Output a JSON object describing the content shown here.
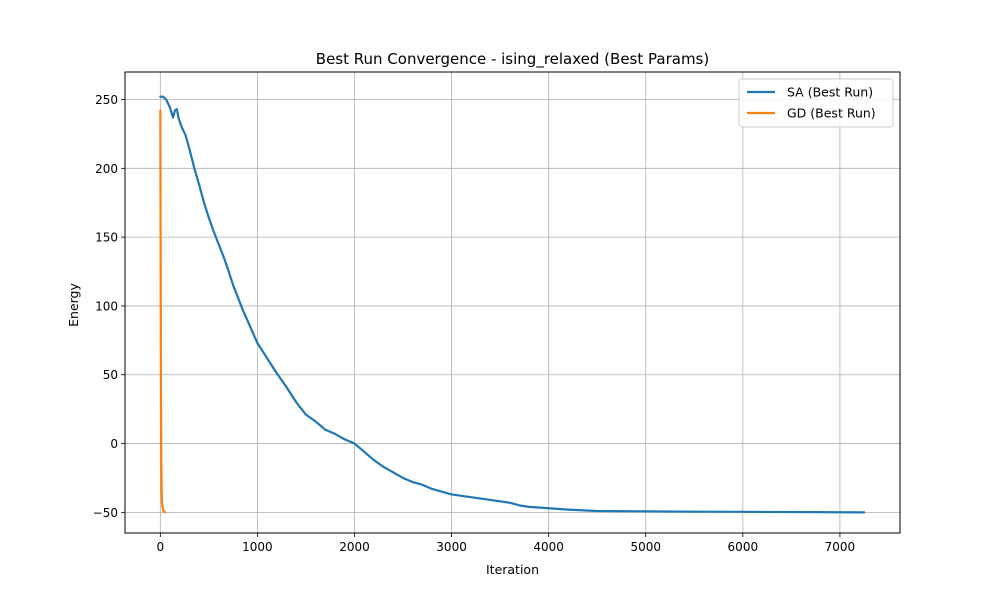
{
  "chart_data": {
    "type": "line",
    "title": "Best Run Convergence - ising_relaxed (Best Params)",
    "xlabel": "Iteration",
    "ylabel": "Energy",
    "xlim": [
      -364,
      7619
    ],
    "ylim": [
      -65,
      270
    ],
    "xticks": [
      0,
      1000,
      2000,
      3000,
      4000,
      5000,
      6000,
      7000
    ],
    "yticks": [
      -50,
      0,
      50,
      100,
      150,
      200,
      250
    ],
    "grid": true,
    "legend_position": "upper right",
    "series": [
      {
        "name": "SA (Best Run)",
        "color": "#1f77b4",
        "x": [
          0,
          30,
          60,
          100,
          130,
          150,
          170,
          190,
          220,
          260,
          300,
          350,
          400,
          450,
          500,
          550,
          600,
          650,
          700,
          750,
          800,
          850,
          900,
          950,
          1000,
          1100,
          1200,
          1300,
          1400,
          1500,
          1600,
          1700,
          1800,
          1900,
          2000,
          2100,
          2200,
          2300,
          2400,
          2500,
          2600,
          2700,
          2800,
          2900,
          3000,
          3200,
          3400,
          3600,
          3700,
          3800,
          4000,
          4200,
          4500,
          5000,
          5500,
          6000,
          6500,
          7000,
          7250
        ],
        "y": [
          252,
          252,
          250,
          244,
          237,
          242,
          243,
          236,
          230,
          224,
          214,
          200,
          188,
          175,
          164,
          154,
          145,
          136,
          126,
          115,
          106,
          97,
          89,
          81,
          73,
          62,
          51,
          41,
          30,
          21,
          16,
          10,
          7,
          3,
          0,
          -6,
          -12,
          -17,
          -21,
          -25,
          -28,
          -30,
          -33,
          -35,
          -37,
          -39,
          -41,
          -43,
          -45,
          -46,
          -47,
          -48,
          -49,
          -49.3,
          -49.5,
          -49.6,
          -49.8,
          -49.9,
          -50
        ]
      },
      {
        "name": "GD (Best Run)",
        "color": "#ff7f0e",
        "x": [
          0,
          2,
          4,
          6,
          8,
          10,
          12,
          14,
          16,
          20,
          25,
          30,
          40,
          50
        ],
        "y": [
          242,
          180,
          110,
          50,
          10,
          -15,
          -28,
          -36,
          -41,
          -45,
          -47,
          -48.5,
          -49.5,
          -50
        ]
      }
    ]
  }
}
